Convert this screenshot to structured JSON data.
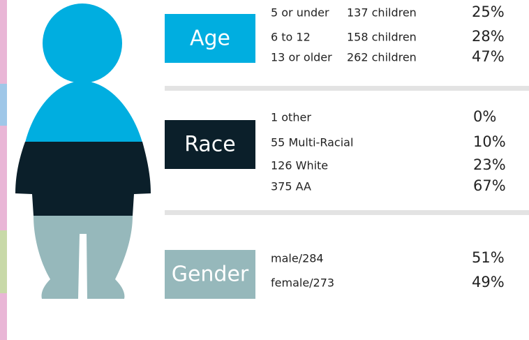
{
  "sections": [
    {
      "label": "Age",
      "rows": [
        {
          "name": "5 or under",
          "count": "137 children",
          "percent": "25%"
        },
        {
          "name": "6 to 12",
          "count": "158 children",
          "percent": "28%"
        },
        {
          "name": "13 or older",
          "count": "262 children",
          "percent": "47%"
        }
      ]
    },
    {
      "label": "Race",
      "rows": [
        {
          "name": "1 other",
          "percent": "0%"
        },
        {
          "name": "55 Multi-Racial",
          "percent": "10%"
        },
        {
          "name": "126 White",
          "percent": "23%"
        },
        {
          "name": "375 AA",
          "percent": "67%"
        }
      ]
    },
    {
      "label": "Gender",
      "rows": [
        {
          "name": "male/284",
          "percent": "51%"
        },
        {
          "name": "female/273",
          "percent": "49%"
        }
      ]
    }
  ]
}
